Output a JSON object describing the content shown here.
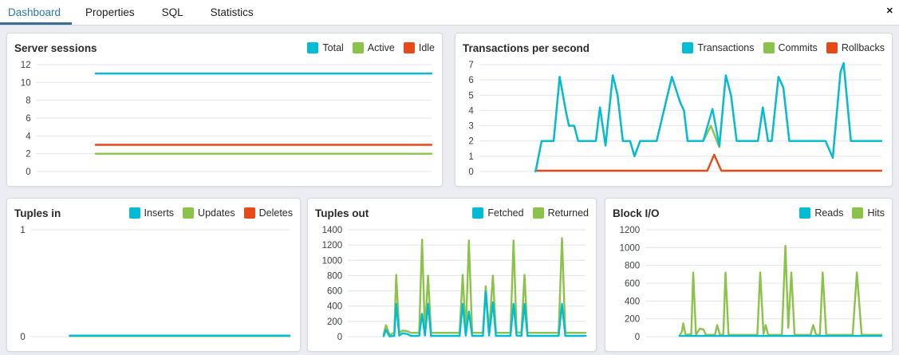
{
  "tabs": {
    "items": [
      {
        "label": "Dashboard",
        "active": true
      },
      {
        "label": "Properties",
        "active": false
      },
      {
        "label": "SQL",
        "active": false
      },
      {
        "label": "Statistics",
        "active": false
      }
    ],
    "close_icon": "✕"
  },
  "colors": {
    "accent_cyan": "#00BCD4",
    "accent_green": "#8BC34A",
    "accent_red": "#E64A19",
    "tab_active_text": "#2c76ac",
    "tab_underline": "#3b6e94",
    "page_background": "#ecedf2",
    "gridline": "#e2e4ec"
  },
  "chart_data": [
    {
      "type": "line",
      "title": "Server sessions",
      "legend_position": "top-right",
      "grid": true,
      "x_axis_labels_visible": false,
      "ylim": [
        0,
        12
      ],
      "yticks": [
        0,
        2,
        4,
        6,
        8,
        10,
        12
      ],
      "series": [
        {
          "name": "Total",
          "color": "#00BCD4",
          "points": [
            [
              15,
              11
            ],
            [
              100,
              11
            ]
          ]
        },
        {
          "name": "Active",
          "color": "#8BC34A",
          "points": [
            [
              15,
              2
            ],
            [
              100,
              2
            ]
          ]
        },
        {
          "name": "Idle",
          "color": "#E64A19",
          "points": [
            [
              15,
              3
            ],
            [
              100,
              3
            ]
          ]
        }
      ]
    },
    {
      "type": "line",
      "title": "Transactions per second",
      "legend_position": "top-right",
      "grid": true,
      "x_axis_labels_visible": false,
      "ylim": [
        0,
        7
      ],
      "yticks": [
        0,
        1,
        2,
        3,
        4,
        5,
        6,
        7
      ],
      "series": [
        {
          "name": "Transactions",
          "color": "#00BCD4",
          "points": [
            [
              14,
              0
            ],
            [
              15.5,
              2
            ],
            [
              18.5,
              2
            ],
            [
              20,
              6.2
            ],
            [
              21.5,
              4
            ],
            [
              22.3,
              3
            ],
            [
              23.6,
              3
            ],
            [
              24.6,
              2
            ],
            [
              29,
              2
            ],
            [
              30,
              4.2
            ],
            [
              31.4,
              1.7
            ],
            [
              33.2,
              6.3
            ],
            [
              34.4,
              5
            ],
            [
              35.7,
              2
            ],
            [
              37.5,
              2
            ],
            [
              38.6,
              1
            ],
            [
              40,
              2
            ],
            [
              44.1,
              2
            ],
            [
              47.9,
              6.2
            ],
            [
              50,
              4.5
            ],
            [
              50.9,
              4
            ],
            [
              51.8,
              2
            ],
            [
              55.7,
              2
            ],
            [
              58,
              4.1
            ],
            [
              59.7,
              1.7
            ],
            [
              61.3,
              6.3
            ],
            [
              62.6,
              5
            ],
            [
              64,
              2
            ],
            [
              69.3,
              2
            ],
            [
              70.5,
              4.2
            ],
            [
              71.8,
              2
            ],
            [
              72.7,
              2
            ],
            [
              74.4,
              6.2
            ],
            [
              75.6,
              5.5
            ],
            [
              77.1,
              2
            ],
            [
              86.1,
              2
            ],
            [
              87.9,
              0.9
            ],
            [
              89.8,
              6.5
            ],
            [
              90.6,
              7.1
            ],
            [
              92.4,
              2
            ],
            [
              100,
              2
            ]
          ]
        },
        {
          "name": "Commits",
          "color": "#8BC34A",
          "points": [
            [
              14,
              0
            ],
            [
              15.5,
              2
            ],
            [
              18.5,
              2
            ],
            [
              20,
              6.2
            ],
            [
              21.5,
              4
            ],
            [
              22.3,
              3
            ],
            [
              23.6,
              3
            ],
            [
              24.6,
              2
            ],
            [
              29,
              2
            ],
            [
              30,
              4.2
            ],
            [
              31.4,
              1.7
            ],
            [
              33.2,
              6.3
            ],
            [
              34.4,
              5
            ],
            [
              35.7,
              2
            ],
            [
              37.5,
              2
            ],
            [
              38.6,
              1
            ],
            [
              40,
              2
            ],
            [
              44.1,
              2
            ],
            [
              47.9,
              6.2
            ],
            [
              50,
              4.5
            ],
            [
              50.9,
              4
            ],
            [
              51.8,
              2
            ],
            [
              55.7,
              2
            ],
            [
              57.6,
              3
            ],
            [
              59.7,
              1.6
            ],
            [
              61.3,
              6.3
            ],
            [
              62.6,
              5
            ],
            [
              64,
              2
            ],
            [
              69.3,
              2
            ],
            [
              70.5,
              4.2
            ],
            [
              71.8,
              2
            ],
            [
              72.7,
              2
            ],
            [
              74.4,
              6.2
            ],
            [
              75.6,
              5.5
            ],
            [
              77.1,
              2
            ],
            [
              86.1,
              2
            ],
            [
              87.9,
              0.9
            ],
            [
              89.8,
              6.5
            ],
            [
              90.6,
              7.1
            ],
            [
              92.4,
              2
            ],
            [
              100,
              2
            ]
          ]
        },
        {
          "name": "Rollbacks",
          "color": "#E64A19",
          "points": [
            [
              14,
              0.05
            ],
            [
              56.7,
              0.05
            ],
            [
              58.4,
              1.1
            ],
            [
              60.2,
              0.05
            ],
            [
              100,
              0.05
            ]
          ]
        }
      ]
    },
    {
      "type": "line",
      "title": "Tuples in",
      "legend_position": "top-right",
      "grid": true,
      "x_axis_labels_visible": false,
      "ylim": [
        0,
        1
      ],
      "yticks": [
        0,
        1
      ],
      "series": [
        {
          "name": "Inserts",
          "color": "#00BCD4",
          "points": [
            [
              15,
              0.01
            ],
            [
              100,
              0.01
            ]
          ]
        },
        {
          "name": "Updates",
          "color": "#8BC34A",
          "points": [
            [
              15,
              0.005
            ],
            [
              100,
              0.005
            ]
          ]
        },
        {
          "name": "Deletes",
          "color": "#E64A19",
          "points": [
            [
              15,
              0.005
            ],
            [
              100,
              0.005
            ]
          ]
        }
      ]
    },
    {
      "type": "line",
      "title": "Tuples out",
      "legend_position": "top-right",
      "grid": true,
      "x_axis_labels_visible": false,
      "ylim": [
        0,
        1400
      ],
      "yticks": [
        0,
        200,
        400,
        600,
        800,
        1000,
        1200,
        1400
      ],
      "series": [
        {
          "name": "Fetched",
          "color": "#00BCD4",
          "points": [
            [
              15,
              5
            ],
            [
              16,
              90
            ],
            [
              17.5,
              5
            ],
            [
              19.5,
              10
            ],
            [
              20.3,
              430
            ],
            [
              21.6,
              15
            ],
            [
              23,
              45
            ],
            [
              25,
              35
            ],
            [
              26.5,
              10
            ],
            [
              30,
              10
            ],
            [
              31.2,
              300
            ],
            [
              32.4,
              15
            ],
            [
              33.7,
              430
            ],
            [
              35,
              10
            ],
            [
              47,
              10
            ],
            [
              48.3,
              430
            ],
            [
              49.6,
              15
            ],
            [
              50.9,
              330
            ],
            [
              52.3,
              10
            ],
            [
              56.8,
              10
            ],
            [
              58,
              590
            ],
            [
              59.4,
              15
            ],
            [
              61,
              450
            ],
            [
              62.3,
              10
            ],
            [
              68.4,
              10
            ],
            [
              69.7,
              430
            ],
            [
              71,
              15
            ],
            [
              73,
              10
            ],
            [
              74.3,
              430
            ],
            [
              75.6,
              10
            ],
            [
              88.7,
              10
            ],
            [
              90.1,
              430
            ],
            [
              91.5,
              10
            ],
            [
              100,
              10
            ]
          ]
        },
        {
          "name": "Returned",
          "color": "#8BC34A",
          "points": [
            [
              15,
              30
            ],
            [
              16,
              150
            ],
            [
              17.5,
              25
            ],
            [
              19.5,
              50
            ],
            [
              20.3,
              810
            ],
            [
              21.6,
              50
            ],
            [
              23,
              80
            ],
            [
              25,
              70
            ],
            [
              26.5,
              50
            ],
            [
              30,
              50
            ],
            [
              31.2,
              1270
            ],
            [
              32.4,
              60
            ],
            [
              33.7,
              800
            ],
            [
              35,
              50
            ],
            [
              47,
              50
            ],
            [
              48.3,
              810
            ],
            [
              49.6,
              60
            ],
            [
              50.9,
              1260
            ],
            [
              52.3,
              50
            ],
            [
              56.8,
              50
            ],
            [
              58,
              660
            ],
            [
              59.4,
              60
            ],
            [
              61,
              800
            ],
            [
              62.3,
              50
            ],
            [
              68.4,
              50
            ],
            [
              69.7,
              1260
            ],
            [
              71,
              60
            ],
            [
              73,
              50
            ],
            [
              74.3,
              810
            ],
            [
              75.6,
              50
            ],
            [
              88.7,
              50
            ],
            [
              90.1,
              1290
            ],
            [
              91.5,
              50
            ],
            [
              100,
              50
            ]
          ]
        }
      ]
    },
    {
      "type": "line",
      "title": "Block I/O",
      "legend_position": "top-right",
      "grid": true,
      "x_axis_labels_visible": false,
      "ylim": [
        0,
        1200
      ],
      "yticks": [
        0,
        200,
        400,
        600,
        800,
        1000,
        1200
      ],
      "series": [
        {
          "name": "Reads",
          "color": "#00BCD4",
          "points": [
            [
              14.5,
              8
            ],
            [
              100,
              8
            ]
          ]
        },
        {
          "name": "Hits",
          "color": "#8BC34A",
          "points": [
            [
              14.5,
              15
            ],
            [
              15.5,
              60
            ],
            [
              16,
              150
            ],
            [
              17,
              20
            ],
            [
              19.4,
              30
            ],
            [
              20.2,
              720
            ],
            [
              21.4,
              20
            ],
            [
              23,
              90
            ],
            [
              24.6,
              80
            ],
            [
              25.6,
              20
            ],
            [
              29.4,
              20
            ],
            [
              30.4,
              130
            ],
            [
              31.5,
              20
            ],
            [
              33,
              25
            ],
            [
              33.9,
              720
            ],
            [
              35.2,
              20
            ],
            [
              47.4,
              20
            ],
            [
              48.6,
              720
            ],
            [
              50,
              30
            ],
            [
              50.9,
              130
            ],
            [
              52,
              20
            ],
            [
              57.8,
              20
            ],
            [
              59.3,
              1020
            ],
            [
              60.5,
              100
            ],
            [
              61.8,
              720
            ],
            [
              63.2,
              20
            ],
            [
              69.9,
              20
            ],
            [
              71.1,
              130
            ],
            [
              72.3,
              20
            ],
            [
              73.9,
              20
            ],
            [
              75.1,
              720
            ],
            [
              76.6,
              20
            ],
            [
              87.8,
              20
            ],
            [
              89.6,
              720
            ],
            [
              91.6,
              20
            ],
            [
              100,
              20
            ]
          ]
        }
      ]
    }
  ]
}
